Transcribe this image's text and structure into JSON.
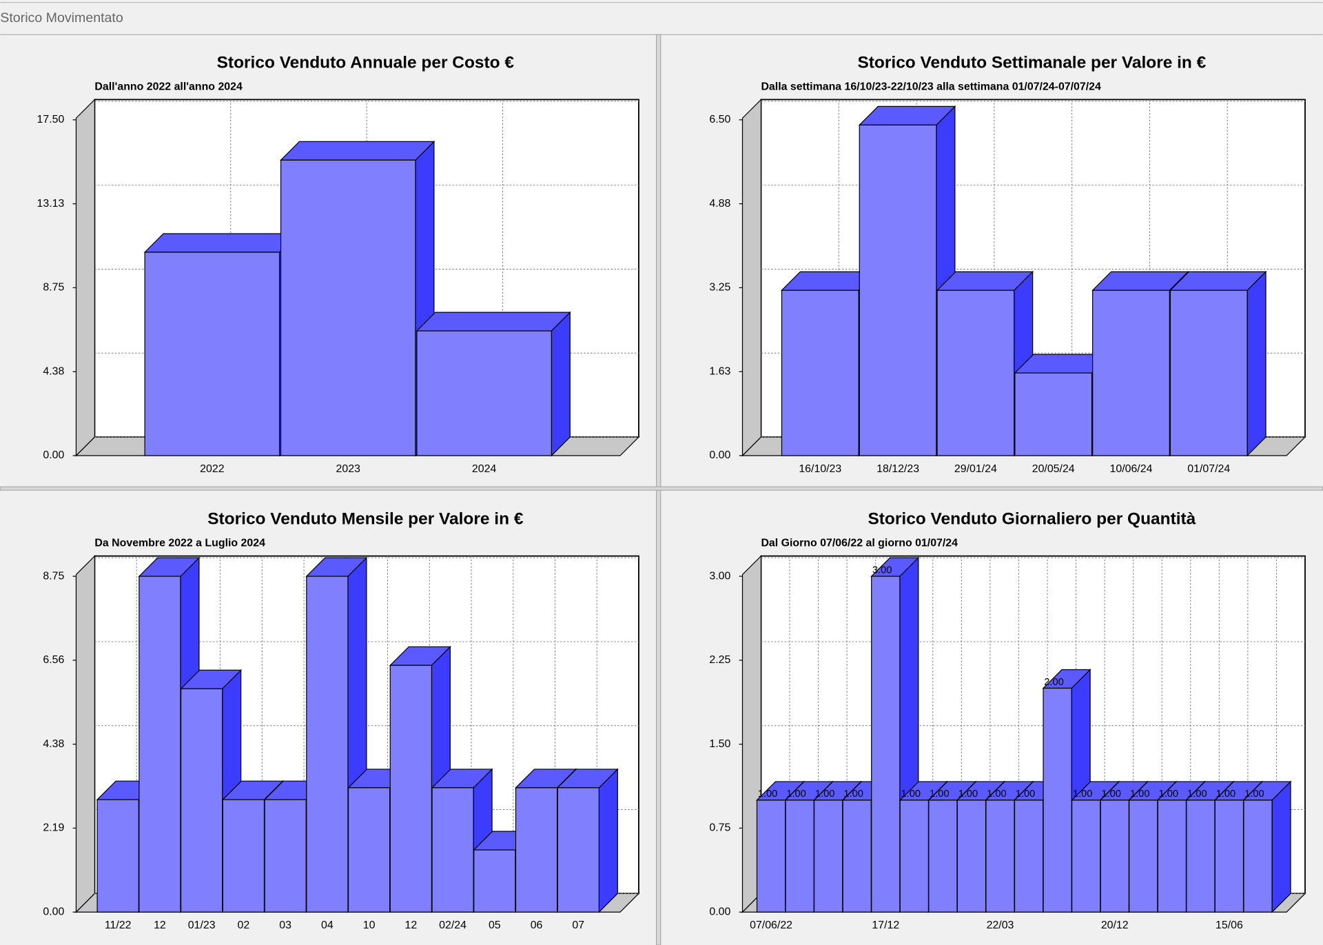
{
  "window_title": "Storico Movimentato",
  "chart_data": [
    {
      "type": "bar3d",
      "title": "Storico Venduto Annuale per Costo €",
      "subtitle": "Dall'anno 2022 all'anno 2024",
      "categories": [
        "2022",
        "2023",
        "2024"
      ],
      "values": [
        10.6,
        15.4,
        6.5
      ],
      "color": "#8080ff",
      "ylim": [
        0,
        17.5
      ],
      "yticks": [
        {
          "value": 0,
          "label": "0.00"
        },
        {
          "value": 4.375,
          "label": "4.38"
        },
        {
          "value": 8.75,
          "label": "8.75"
        },
        {
          "value": 13.125,
          "label": "13.13"
        },
        {
          "value": 17.5,
          "label": "17.50"
        }
      ],
      "grid": true
    },
    {
      "type": "bar3d",
      "title": "Storico Venduto Settimanale per Valore in €",
      "subtitle": "Dalla settimana 16/10/23-22/10/23 alla settimana 01/07/24-07/07/24",
      "categories": [
        "16/10/23",
        "18/12/23",
        "29/01/24",
        "20/05/24",
        "10/06/24",
        "01/07/24"
      ],
      "values": [
        3.2,
        6.4,
        3.2,
        1.6,
        3.2,
        3.2
      ],
      "color": "#8080ff",
      "ylim": [
        0,
        6.5
      ],
      "yticks": [
        {
          "value": 0,
          "label": "0.00"
        },
        {
          "value": 1.625,
          "label": "1.63"
        },
        3.25,
        {
          "value": 4.875,
          "label": "4.88"
        },
        {
          "value": 6.5,
          "label": "6.50"
        }
      ],
      "grid": true
    },
    {
      "type": "bar3d",
      "title": "Storico Venduto Mensile per Valore in €",
      "subtitle": "Da Novembre 2022   a Luglio 2024",
      "categories": [
        "11/22",
        "12",
        "01/23",
        "02",
        "03",
        "04",
        "10",
        "12",
        "02/24",
        "05",
        "06",
        "07"
      ],
      "values": [
        2.93,
        8.75,
        5.82,
        2.93,
        2.93,
        8.75,
        3.24,
        6.43,
        3.24,
        1.62,
        3.24,
        3.24
      ],
      "color": "#8080ff",
      "ylim": [
        0,
        8.75
      ],
      "yticks": [
        {
          "value": 0,
          "label": "0.00"
        },
        {
          "value": 2.1875,
          "label": "2.19"
        },
        {
          "value": 4.375,
          "label": "4.38"
        },
        {
          "value": 6.5625,
          "label": "6.56"
        },
        8.75
      ],
      "grid": true
    },
    {
      "type": "bar3d",
      "title": "Storico Venduto Giornaliero per Quantità",
      "subtitle": "Dal Giorno 07/06/22 al giorno 01/07/24",
      "categories": [
        "07/06/22",
        null,
        null,
        null,
        "17/12",
        null,
        null,
        null,
        "22/03",
        null,
        null,
        null,
        "20/12",
        null,
        null,
        null,
        "15/06",
        null
      ],
      "values": [
        1,
        1,
        1,
        1,
        3,
        1,
        1,
        1,
        1,
        1,
        2,
        1,
        1,
        1,
        1,
        1,
        1,
        1
      ],
      "value_labels": [
        "1.00",
        "1.00",
        "1.00",
        "1.00",
        "3.00",
        "1.00",
        "1.00",
        "1.00",
        "1.00",
        "1.00",
        "2.00",
        "1.00",
        "1.00",
        "1.00",
        "1.00",
        "1.00",
        "1.00",
        "1.00"
      ],
      "color": "#8080ff",
      "ylim": [
        0,
        3
      ],
      "yticks": [
        {
          "value": 0,
          "label": "0.00"
        },
        0.75,
        {
          "value": 1.5,
          "label": "1.50"
        },
        2.25,
        {
          "value": 3,
          "label": "3.00"
        }
      ],
      "grid": true
    }
  ]
}
